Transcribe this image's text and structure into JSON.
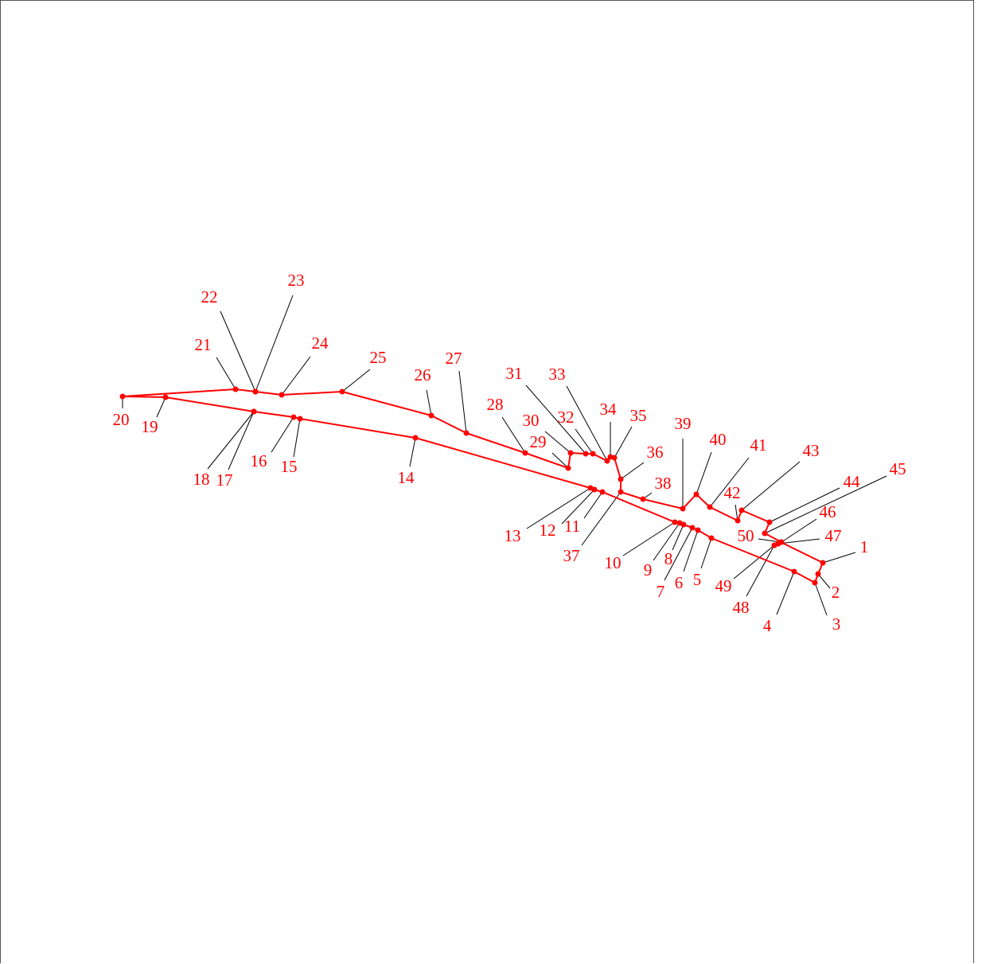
{
  "colors": {
    "path": "#ff0000",
    "marker": "#ff0000",
    "leader": "#000000",
    "label": "#ff0000"
  },
  "polygon_order": [
    1,
    2,
    3,
    4,
    5,
    6,
    7,
    8,
    9,
    10,
    11,
    12,
    13,
    14,
    15,
    16,
    17,
    18,
    19,
    20,
    21,
    22,
    23,
    24,
    25,
    26,
    27,
    28,
    29,
    30,
    31,
    32,
    33,
    34,
    35,
    36,
    37,
    38,
    39,
    40,
    41,
    42,
    43,
    44,
    45,
    46,
    47,
    48,
    49,
    50
  ],
  "points": [
    {
      "id": 1,
      "label": "1"
    },
    {
      "id": 2,
      "label": "2"
    },
    {
      "id": 3,
      "label": "3"
    },
    {
      "id": 4,
      "label": "4"
    },
    {
      "id": 5,
      "label": "5"
    },
    {
      "id": 6,
      "label": "6"
    },
    {
      "id": 7,
      "label": "7"
    },
    {
      "id": 8,
      "label": "8"
    },
    {
      "id": 9,
      "label": "9"
    },
    {
      "id": 10,
      "label": "10"
    },
    {
      "id": 11,
      "label": "11"
    },
    {
      "id": 12,
      "label": "12"
    },
    {
      "id": 13,
      "label": "13"
    },
    {
      "id": 14,
      "label": "14"
    },
    {
      "id": 15,
      "label": "15"
    },
    {
      "id": 16,
      "label": "16"
    },
    {
      "id": 17,
      "label": "17"
    },
    {
      "id": 18,
      "label": "18"
    },
    {
      "id": 19,
      "label": "19"
    },
    {
      "id": 20,
      "label": "20"
    },
    {
      "id": 21,
      "label": "21"
    },
    {
      "id": 22,
      "label": "22"
    },
    {
      "id": 23,
      "label": "23"
    },
    {
      "id": 24,
      "label": "24"
    },
    {
      "id": 25,
      "label": "25"
    },
    {
      "id": 26,
      "label": "26"
    },
    {
      "id": 27,
      "label": "27"
    },
    {
      "id": 28,
      "label": "28"
    },
    {
      "id": 29,
      "label": "29"
    },
    {
      "id": 30,
      "label": "30"
    },
    {
      "id": 31,
      "label": "31"
    },
    {
      "id": 32,
      "label": "32"
    },
    {
      "id": 33,
      "label": "33"
    },
    {
      "id": 34,
      "label": "34"
    },
    {
      "id": 35,
      "label": "35"
    },
    {
      "id": 36,
      "label": "36"
    },
    {
      "id": 37,
      "label": "37"
    },
    {
      "id": 38,
      "label": "38"
    },
    {
      "id": 39,
      "label": "39"
    },
    {
      "id": 40,
      "label": "40"
    },
    {
      "id": 41,
      "label": "41"
    },
    {
      "id": 42,
      "label": "42"
    },
    {
      "id": 43,
      "label": "43"
    },
    {
      "id": 44,
      "label": "44"
    },
    {
      "id": 45,
      "label": "45"
    },
    {
      "id": 46,
      "label": "46"
    },
    {
      "id": 47,
      "label": "47"
    },
    {
      "id": 48,
      "label": "48"
    },
    {
      "id": 49,
      "label": "49"
    },
    {
      "id": 50,
      "label": "50"
    }
  ]
}
